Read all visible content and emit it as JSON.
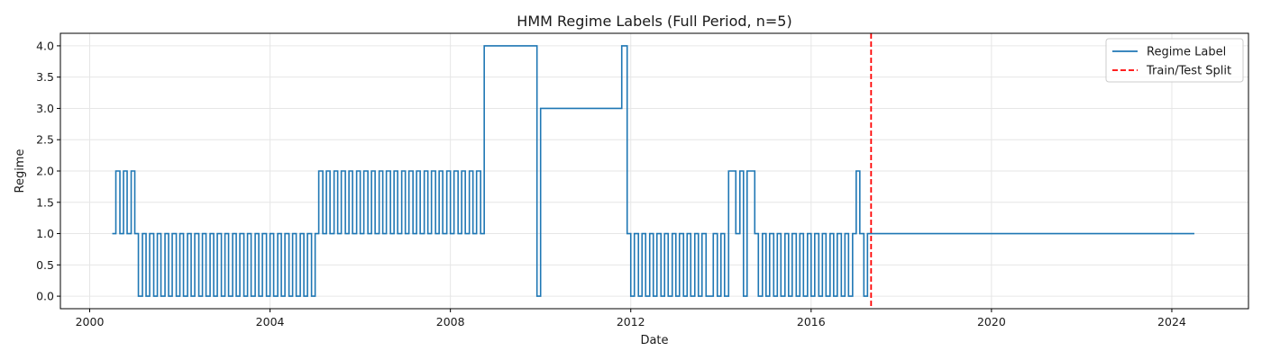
{
  "chart_data": {
    "type": "line",
    "title": "HMM Regime Labels (Full Period, n=5)",
    "xlabel": "Date",
    "ylabel": "Regime",
    "xlim": [
      1999.35,
      2025.7
    ],
    "ylim": [
      -0.2,
      4.2
    ],
    "x_ticks": [
      2000,
      2004,
      2008,
      2012,
      2016,
      2020,
      2024
    ],
    "x_tick_labels": [
      "2000",
      "2004",
      "2008",
      "2012",
      "2016",
      "2020",
      "2024"
    ],
    "y_ticks": [
      0.0,
      0.5,
      1.0,
      1.5,
      2.0,
      2.5,
      3.0,
      3.5,
      4.0
    ],
    "y_tick_labels": [
      "0.0",
      "0.5",
      "1.0",
      "1.5",
      "2.0",
      "2.5",
      "3.0",
      "3.5",
      "4.0"
    ],
    "grid": true,
    "legend_position": "top-right",
    "series": [
      {
        "name": "Regime Label",
        "style": "step",
        "color": "#1f77b4",
        "segments": [
          [
            2000.5,
            1
          ],
          [
            2000.58,
            2
          ],
          [
            2000.67,
            1
          ],
          [
            2000.75,
            2
          ],
          [
            2000.83,
            1
          ],
          [
            2000.92,
            2
          ],
          [
            2001.0,
            1
          ],
          [
            2001.08,
            0
          ],
          [
            2001.17,
            1
          ],
          [
            2001.25,
            0
          ],
          [
            2001.33,
            1
          ],
          [
            2001.42,
            0
          ],
          [
            2001.5,
            1
          ],
          [
            2001.58,
            0
          ],
          [
            2001.67,
            1
          ],
          [
            2001.75,
            0
          ],
          [
            2001.83,
            1
          ],
          [
            2001.92,
            0
          ],
          [
            2002.0,
            1
          ],
          [
            2002.08,
            0
          ],
          [
            2002.17,
            1
          ],
          [
            2002.25,
            0
          ],
          [
            2002.33,
            1
          ],
          [
            2002.42,
            0
          ],
          [
            2002.5,
            1
          ],
          [
            2002.58,
            0
          ],
          [
            2002.67,
            1
          ],
          [
            2002.75,
            0
          ],
          [
            2002.83,
            1
          ],
          [
            2002.92,
            0
          ],
          [
            2003.0,
            1
          ],
          [
            2003.08,
            0
          ],
          [
            2003.17,
            1
          ],
          [
            2003.25,
            0
          ],
          [
            2003.33,
            1
          ],
          [
            2003.42,
            0
          ],
          [
            2003.5,
            1
          ],
          [
            2003.58,
            0
          ],
          [
            2003.67,
            1
          ],
          [
            2003.75,
            0
          ],
          [
            2003.83,
            1
          ],
          [
            2003.92,
            0
          ],
          [
            2004.0,
            1
          ],
          [
            2004.08,
            0
          ],
          [
            2004.17,
            1
          ],
          [
            2004.25,
            0
          ],
          [
            2004.33,
            1
          ],
          [
            2004.42,
            0
          ],
          [
            2004.5,
            1
          ],
          [
            2004.58,
            0
          ],
          [
            2004.67,
            1
          ],
          [
            2004.75,
            0
          ],
          [
            2004.83,
            1
          ],
          [
            2004.92,
            0
          ],
          [
            2005.0,
            1
          ],
          [
            2005.08,
            2
          ],
          [
            2005.17,
            1
          ],
          [
            2005.25,
            2
          ],
          [
            2005.33,
            1
          ],
          [
            2005.42,
            2
          ],
          [
            2005.5,
            1
          ],
          [
            2005.58,
            2
          ],
          [
            2005.67,
            1
          ],
          [
            2005.75,
            2
          ],
          [
            2005.83,
            1
          ],
          [
            2005.92,
            2
          ],
          [
            2006.0,
            1
          ],
          [
            2006.08,
            2
          ],
          [
            2006.17,
            1
          ],
          [
            2006.25,
            2
          ],
          [
            2006.33,
            1
          ],
          [
            2006.42,
            2
          ],
          [
            2006.5,
            1
          ],
          [
            2006.58,
            2
          ],
          [
            2006.67,
            1
          ],
          [
            2006.75,
            2
          ],
          [
            2006.83,
            1
          ],
          [
            2006.92,
            2
          ],
          [
            2007.0,
            1
          ],
          [
            2007.08,
            2
          ],
          [
            2007.17,
            1
          ],
          [
            2007.25,
            2
          ],
          [
            2007.33,
            1
          ],
          [
            2007.42,
            2
          ],
          [
            2007.5,
            1
          ],
          [
            2007.58,
            2
          ],
          [
            2007.67,
            1
          ],
          [
            2007.75,
            2
          ],
          [
            2007.83,
            1
          ],
          [
            2007.92,
            2
          ],
          [
            2008.0,
            1
          ],
          [
            2008.08,
            2
          ],
          [
            2008.17,
            1
          ],
          [
            2008.25,
            2
          ],
          [
            2008.33,
            1
          ],
          [
            2008.42,
            2
          ],
          [
            2008.5,
            1
          ],
          [
            2008.58,
            2
          ],
          [
            2008.67,
            1
          ],
          [
            2008.75,
            4
          ],
          [
            2009.92,
            0
          ],
          [
            2010.0,
            3
          ],
          [
            2011.8,
            4
          ],
          [
            2011.92,
            1
          ],
          [
            2012.0,
            0
          ],
          [
            2012.08,
            1
          ],
          [
            2012.17,
            0
          ],
          [
            2012.25,
            1
          ],
          [
            2012.33,
            0
          ],
          [
            2012.42,
            1
          ],
          [
            2012.5,
            0
          ],
          [
            2012.58,
            1
          ],
          [
            2012.67,
            0
          ],
          [
            2012.75,
            1
          ],
          [
            2012.83,
            0
          ],
          [
            2012.92,
            1
          ],
          [
            2013.0,
            0
          ],
          [
            2013.08,
            1
          ],
          [
            2013.17,
            0
          ],
          [
            2013.25,
            1
          ],
          [
            2013.33,
            0
          ],
          [
            2013.42,
            1
          ],
          [
            2013.5,
            0
          ],
          [
            2013.58,
            1
          ],
          [
            2013.67,
            0
          ],
          [
            2013.83,
            1
          ],
          [
            2013.92,
            0
          ],
          [
            2014.0,
            1
          ],
          [
            2014.08,
            0
          ],
          [
            2014.17,
            2
          ],
          [
            2014.33,
            1
          ],
          [
            2014.42,
            2
          ],
          [
            2014.5,
            0
          ],
          [
            2014.58,
            2
          ],
          [
            2014.75,
            1
          ],
          [
            2014.83,
            0
          ],
          [
            2014.92,
            1
          ],
          [
            2015.0,
            0
          ],
          [
            2015.08,
            1
          ],
          [
            2015.17,
            0
          ],
          [
            2015.25,
            1
          ],
          [
            2015.33,
            0
          ],
          [
            2015.42,
            1
          ],
          [
            2015.5,
            0
          ],
          [
            2015.58,
            1
          ],
          [
            2015.67,
            0
          ],
          [
            2015.75,
            1
          ],
          [
            2015.83,
            0
          ],
          [
            2015.92,
            1
          ],
          [
            2016.0,
            0
          ],
          [
            2016.08,
            1
          ],
          [
            2016.17,
            0
          ],
          [
            2016.25,
            1
          ],
          [
            2016.33,
            0
          ],
          [
            2016.42,
            1
          ],
          [
            2016.5,
            0
          ],
          [
            2016.58,
            1
          ],
          [
            2016.67,
            0
          ],
          [
            2016.75,
            1
          ],
          [
            2016.83,
            0
          ],
          [
            2016.92,
            1
          ],
          [
            2017.0,
            2
          ],
          [
            2017.08,
            1
          ],
          [
            2017.17,
            0
          ],
          [
            2017.25,
            1
          ],
          [
            2024.5,
            1
          ]
        ]
      },
      {
        "name": "Train/Test Split",
        "style": "vline",
        "color": "#ff0000",
        "x": 2017.33
      }
    ]
  }
}
